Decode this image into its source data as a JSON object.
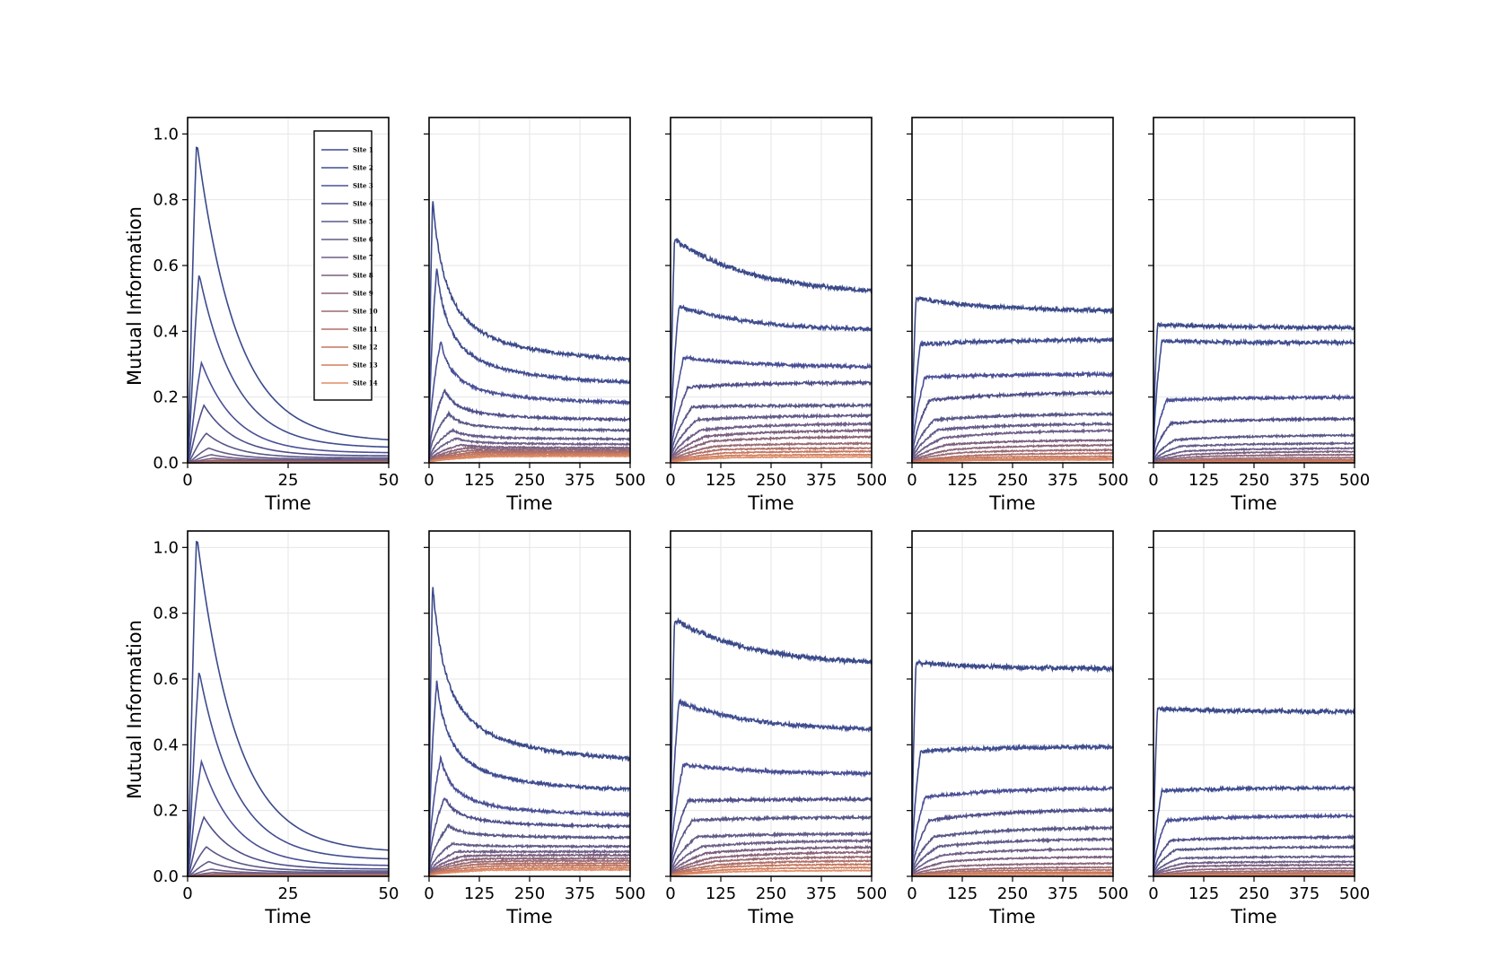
{
  "chart_data": {
    "type": "line",
    "layout": "2 rows x 5 columns of small-multiple line plots",
    "ylabel": "Mutual Information",
    "ylim": [
      0,
      1.05
    ],
    "yticks": [
      0.0,
      0.2,
      0.4,
      0.6,
      0.8,
      1.0
    ],
    "ytick_labels": [
      "0.0",
      "0.2",
      "0.4",
      "0.6",
      "0.8",
      "1.0"
    ],
    "grid": true,
    "legend_placement": "top-right of first panel",
    "series_names": [
      "Site 1",
      "Site 2",
      "Site 3",
      "Site 4",
      "Site 5",
      "Site 6",
      "Site 7",
      "Site 8",
      "Site 9",
      "Site 10",
      "Site 11",
      "Site 12",
      "Site 13",
      "Site 14"
    ],
    "series_colors": [
      "#3b4a8a",
      "#404d90",
      "#4a5096",
      "#4f4f8a",
      "#585888",
      "#625a88",
      "#6e5e88",
      "#7a5e7e",
      "#8a6478",
      "#9a6a72",
      "#b06e66",
      "#c4765e",
      "#d07e5c",
      "#e08c66"
    ],
    "row_keys": [
      "row1",
      "row2"
    ],
    "panels": [
      {
        "row": 1,
        "col": 1,
        "xlabel": "Time",
        "xlim": [
          0,
          50
        ],
        "xticks": [
          0,
          25,
          50
        ],
        "xtick_labels": [
          "0",
          "25",
          "50"
        ],
        "kind": "transient",
        "peaks": [
          0.98,
          0.575,
          0.305,
          0.175,
          0.09,
          0.045,
          0.025,
          0.014,
          0.008,
          0.005,
          0.003,
          0.002,
          0.0015,
          0.001
        ],
        "finals": [
          0.063,
          0.045,
          0.03,
          0.021,
          0.015,
          0.011,
          0.008,
          0.006,
          0.004,
          0.003,
          0.002,
          0.0015,
          0.001,
          0.001
        ]
      },
      {
        "row": 1,
        "col": 2,
        "xlabel": "Time",
        "xlim": [
          0,
          500
        ],
        "xticks": [
          0,
          125,
          250,
          375,
          500
        ],
        "xtick_labels": [
          "0",
          "125",
          "250",
          "375",
          "500"
        ],
        "kind": "diffusive",
        "peaks": [
          0.8,
          0.59,
          0.37,
          0.22,
          0.15,
          0.1,
          0.075,
          0.055,
          0.045,
          0.038,
          0.032,
          0.027,
          0.022,
          0.018
        ],
        "finals": [
          0.28,
          0.22,
          0.17,
          0.125,
          0.095,
          0.07,
          0.055,
          0.045,
          0.04,
          0.035,
          0.032,
          0.028,
          0.024,
          0.02
        ]
      },
      {
        "row": 1,
        "col": 3,
        "xlabel": "Time",
        "xlim": [
          0,
          500
        ],
        "xticks": [
          0,
          125,
          250,
          375,
          500
        ],
        "xtick_labels": [
          "0",
          "125",
          "250",
          "375",
          "500"
        ],
        "kind": "saturating",
        "peaks": [
          0.68,
          0.475,
          0.32,
          0.23,
          0.17,
          0.13,
          0.1,
          0.08,
          0.065,
          0.05,
          0.04,
          0.03,
          0.022,
          0.016
        ],
        "finals": [
          0.51,
          0.4,
          0.29,
          0.245,
          0.175,
          0.145,
          0.12,
          0.1,
          0.08,
          0.06,
          0.045,
          0.035,
          0.025,
          0.018
        ]
      },
      {
        "row": 1,
        "col": 4,
        "xlabel": "Time",
        "xlim": [
          0,
          500
        ],
        "xticks": [
          0,
          125,
          250,
          375,
          500
        ],
        "xtick_labels": [
          "0",
          "125",
          "250",
          "375",
          "500"
        ],
        "kind": "saturating",
        "peaks": [
          0.5,
          0.36,
          0.26,
          0.19,
          0.13,
          0.1,
          0.075,
          0.055,
          0.04,
          0.03,
          0.02,
          0.015,
          0.01,
          0.007
        ],
        "finals": [
          0.46,
          0.375,
          0.27,
          0.215,
          0.15,
          0.12,
          0.1,
          0.07,
          0.055,
          0.04,
          0.03,
          0.02,
          0.014,
          0.009
        ]
      },
      {
        "row": 1,
        "col": 5,
        "xlabel": "Time",
        "xlim": [
          0,
          500
        ],
        "xticks": [
          0,
          125,
          250,
          375,
          500
        ],
        "xtick_labels": [
          "0",
          "125",
          "250",
          "375",
          "500"
        ],
        "kind": "saturating",
        "peaks": [
          0.42,
          0.37,
          0.19,
          0.12,
          0.07,
          0.05,
          0.035,
          0.025,
          0.018,
          0.012,
          0.008,
          0.005,
          0.003,
          0.002
        ],
        "finals": [
          0.41,
          0.365,
          0.2,
          0.135,
          0.085,
          0.06,
          0.045,
          0.035,
          0.025,
          0.016,
          0.01,
          0.006,
          0.004,
          0.002
        ]
      },
      {
        "row": 2,
        "col": 1,
        "xlabel": "Time",
        "xlim": [
          0,
          50
        ],
        "xticks": [
          0,
          25,
          50
        ],
        "xtick_labels": [
          "0",
          "25",
          "50"
        ],
        "kind": "transient",
        "peaks": [
          1.04,
          0.625,
          0.35,
          0.18,
          0.09,
          0.045,
          0.022,
          0.012,
          0.007,
          0.004,
          0.003,
          0.002,
          0.0015,
          0.001
        ],
        "finals": [
          0.072,
          0.05,
          0.032,
          0.022,
          0.016,
          0.012,
          0.009,
          0.007,
          0.005,
          0.004,
          0.003,
          0.002,
          0.0015,
          0.001
        ]
      },
      {
        "row": 2,
        "col": 2,
        "xlabel": "Time",
        "xlim": [
          0,
          500
        ],
        "xticks": [
          0,
          125,
          250,
          375,
          500
        ],
        "xtick_labels": [
          "0",
          "125",
          "250",
          "375",
          "500"
        ],
        "kind": "diffusive",
        "peaks": [
          0.89,
          0.59,
          0.36,
          0.24,
          0.155,
          0.1,
          0.075,
          0.06,
          0.05,
          0.042,
          0.035,
          0.028,
          0.022,
          0.018
        ],
        "finals": [
          0.32,
          0.24,
          0.175,
          0.145,
          0.115,
          0.09,
          0.075,
          0.065,
          0.055,
          0.048,
          0.04,
          0.033,
          0.026,
          0.02
        ]
      },
      {
        "row": 2,
        "col": 3,
        "xlabel": "Time",
        "xlim": [
          0,
          500
        ],
        "xticks": [
          0,
          125,
          250,
          375,
          500
        ],
        "xtick_labels": [
          "0",
          "125",
          "250",
          "375",
          "500"
        ],
        "kind": "saturating",
        "peaks": [
          0.78,
          0.53,
          0.34,
          0.23,
          0.17,
          0.12,
          0.09,
          0.07,
          0.055,
          0.045,
          0.035,
          0.028,
          0.02,
          0.014
        ],
        "finals": [
          0.64,
          0.44,
          0.31,
          0.235,
          0.18,
          0.13,
          0.11,
          0.09,
          0.075,
          0.06,
          0.048,
          0.037,
          0.027,
          0.018
        ]
      },
      {
        "row": 2,
        "col": 4,
        "xlabel": "Time",
        "xlim": [
          0,
          500
        ],
        "xticks": [
          0,
          125,
          250,
          375,
          500
        ],
        "xtick_labels": [
          "0",
          "125",
          "250",
          "375",
          "500"
        ],
        "kind": "saturating",
        "peaks": [
          0.65,
          0.38,
          0.24,
          0.17,
          0.12,
          0.09,
          0.065,
          0.045,
          0.03,
          0.02,
          0.015,
          0.01,
          0.007,
          0.005
        ],
        "finals": [
          0.63,
          0.395,
          0.27,
          0.205,
          0.15,
          0.115,
          0.085,
          0.06,
          0.04,
          0.028,
          0.02,
          0.013,
          0.009,
          0.006
        ]
      },
      {
        "row": 2,
        "col": 5,
        "xlabel": "Time",
        "xlim": [
          0,
          500
        ],
        "xticks": [
          0,
          125,
          250,
          375,
          500
        ],
        "xtick_labels": [
          "0",
          "125",
          "250",
          "375",
          "500"
        ],
        "kind": "saturating",
        "peaks": [
          0.51,
          0.26,
          0.17,
          0.11,
          0.08,
          0.055,
          0.04,
          0.03,
          0.02,
          0.013,
          0.009,
          0.006,
          0.004,
          0.002
        ],
        "finals": [
          0.5,
          0.27,
          0.185,
          0.12,
          0.09,
          0.06,
          0.045,
          0.035,
          0.025,
          0.017,
          0.011,
          0.007,
          0.004,
          0.002
        ]
      }
    ]
  }
}
